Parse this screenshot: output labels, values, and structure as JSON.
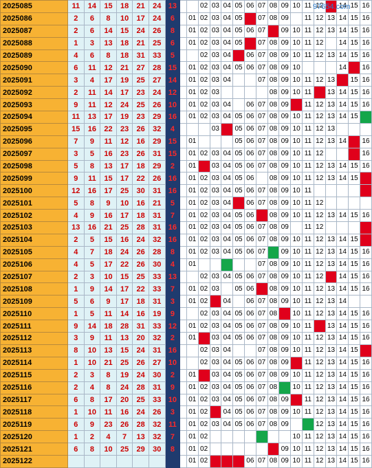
{
  "watermark": "97654.com",
  "columns": [
    "01",
    "02",
    "03",
    "04",
    "05",
    "06",
    "07",
    "08",
    "09",
    "10",
    "11",
    "12",
    "13",
    "14",
    "15",
    "16"
  ],
  "colors": {
    "period_bg": "#f7b233",
    "red_ball_bg": "#dff2f6",
    "red_ball_text": "#cc0000",
    "blue_ball_bg": "#1f3b6e",
    "blue_ball_text": "#ff2a2a",
    "hit_red": "#e0001b",
    "hit_green": "#14a64a"
  },
  "rows": [
    {
      "period": "2025085",
      "reds": [
        "11",
        "14",
        "15",
        "18",
        "21",
        "24"
      ],
      "blue": "13",
      "hit": 13,
      "hitColor": "red",
      "missing": [
        1
      ]
    },
    {
      "period": "2025086",
      "reds": [
        "2",
        "6",
        "8",
        "10",
        "17",
        "24"
      ],
      "blue": "6",
      "hit": 6,
      "hitColor": "red",
      "missing": [
        10
      ]
    },
    {
      "period": "2025087",
      "reds": [
        "2",
        "6",
        "14",
        "15",
        "24",
        "26"
      ],
      "blue": "8",
      "hit": 8,
      "hitColor": "red",
      "missing": []
    },
    {
      "period": "2025088",
      "reds": [
        "1",
        "3",
        "13",
        "18",
        "21",
        "25"
      ],
      "blue": "6",
      "hit": 6,
      "hitColor": "red",
      "missing": [
        13
      ]
    },
    {
      "period": "2025089",
      "reds": [
        "4",
        "6",
        "8",
        "18",
        "31",
        "33"
      ],
      "blue": "5",
      "hit": 5,
      "hitColor": "red",
      "missing": [
        1
      ]
    },
    {
      "period": "2025090",
      "reds": [
        "6",
        "11",
        "12",
        "21",
        "27",
        "28"
      ],
      "blue": "15",
      "hit": 15,
      "hitColor": "red",
      "missing": [
        11,
        12,
        13
      ]
    },
    {
      "period": "2025091",
      "reds": [
        "3",
        "4",
        "17",
        "19",
        "25",
        "27"
      ],
      "blue": "14",
      "hit": 14,
      "hitColor": "red",
      "missing": [
        5,
        6
      ]
    },
    {
      "period": "2025092",
      "reds": [
        "2",
        "11",
        "14",
        "17",
        "23",
        "24"
      ],
      "blue": "12",
      "hit": 12,
      "hitColor": "red",
      "missing": [
        4,
        5,
        6,
        7
      ]
    },
    {
      "period": "2025093",
      "reds": [
        "9",
        "11",
        "12",
        "24",
        "25",
        "26"
      ],
      "blue": "10",
      "hit": 10,
      "hitColor": "red",
      "missing": [
        5
      ]
    },
    {
      "period": "2025094",
      "reds": [
        "11",
        "13",
        "17",
        "19",
        "23",
        "29"
      ],
      "blue": "16",
      "hit": 16,
      "hitColor": "green",
      "missing": []
    },
    {
      "period": "2025095",
      "reds": [
        "15",
        "16",
        "22",
        "23",
        "26",
        "32"
      ],
      "blue": "4",
      "hit": 4,
      "hitColor": "red",
      "missing": [
        1,
        2,
        14,
        15,
        16
      ]
    },
    {
      "period": "2025096",
      "reds": [
        "7",
        "9",
        "11",
        "12",
        "16",
        "29"
      ],
      "blue": "15",
      "hit": 15,
      "hitColor": "red",
      "missing": [
        2,
        3,
        4
      ]
    },
    {
      "period": "2025097",
      "reds": [
        "3",
        "5",
        "16",
        "23",
        "26",
        "31"
      ],
      "blue": "15",
      "hit": 15,
      "hitColor": "red",
      "missing": [
        13,
        14
      ]
    },
    {
      "period": "2025098",
      "reds": [
        "5",
        "8",
        "13",
        "17",
        "18",
        "29"
      ],
      "blue": "2",
      "hit": 2,
      "hitColor": "red",
      "missing": []
    },
    {
      "period": "2025099",
      "reds": [
        "9",
        "11",
        "15",
        "17",
        "22",
        "26"
      ],
      "blue": "16",
      "hit": 16,
      "hitColor": "red",
      "missing": [
        7
      ]
    },
    {
      "period": "2025100",
      "reds": [
        "12",
        "16",
        "17",
        "25",
        "30",
        "31"
      ],
      "blue": "16",
      "hit": 16,
      "hitColor": "red",
      "missing": [
        12,
        13,
        14,
        15
      ]
    },
    {
      "period": "2025101",
      "reds": [
        "5",
        "8",
        "9",
        "10",
        "16",
        "21"
      ],
      "blue": "5",
      "hit": 5,
      "hitColor": "red",
      "missing": [
        13,
        14,
        15,
        16
      ]
    },
    {
      "period": "2025102",
      "reds": [
        "4",
        "9",
        "16",
        "17",
        "18",
        "31"
      ],
      "blue": "7",
      "hit": 7,
      "hitColor": "red",
      "missing": []
    },
    {
      "period": "2025103",
      "reds": [
        "13",
        "16",
        "21",
        "25",
        "28",
        "31"
      ],
      "blue": "16",
      "hit": 16,
      "hitColor": "red",
      "missing": [
        10,
        13,
        14,
        15
      ]
    },
    {
      "period": "2025104",
      "reds": [
        "2",
        "5",
        "15",
        "16",
        "24",
        "32"
      ],
      "blue": "16",
      "hit": 16,
      "hitColor": "red",
      "missing": []
    },
    {
      "period": "2025105",
      "reds": [
        "4",
        "7",
        "18",
        "24",
        "26",
        "28"
      ],
      "blue": "8",
      "hit": 8,
      "hitColor": "green",
      "missing": []
    },
    {
      "period": "2025106",
      "reds": [
        "4",
        "5",
        "17",
        "22",
        "26",
        "30"
      ],
      "blue": "4",
      "hit": 4,
      "hitColor": "green",
      "missing": [
        2,
        3,
        5,
        6
      ]
    },
    {
      "period": "2025107",
      "reds": [
        "2",
        "3",
        "10",
        "15",
        "25",
        "33"
      ],
      "blue": "13",
      "hit": 13,
      "hitColor": "red",
      "missing": [
        1
      ]
    },
    {
      "period": "2025108",
      "reds": [
        "1",
        "9",
        "14",
        "17",
        "22",
        "33"
      ],
      "blue": "7",
      "hit": 7,
      "hitColor": "red",
      "missing": [
        4
      ]
    },
    {
      "period": "2025109",
      "reds": [
        "5",
        "6",
        "9",
        "17",
        "18",
        "31"
      ],
      "blue": "3",
      "hit": 3,
      "hitColor": "red",
      "missing": [
        5,
        15,
        16
      ]
    },
    {
      "period": "2025110",
      "reds": [
        "1",
        "5",
        "11",
        "14",
        "16",
        "19"
      ],
      "blue": "9",
      "hit": 9,
      "hitColor": "red",
      "missing": [
        1
      ]
    },
    {
      "period": "2025111",
      "reds": [
        "9",
        "14",
        "18",
        "28",
        "31",
        "33"
      ],
      "blue": "12",
      "hit": 12,
      "hitColor": "red",
      "missing": []
    },
    {
      "period": "2025112",
      "reds": [
        "3",
        "9",
        "11",
        "13",
        "20",
        "32"
      ],
      "blue": "2",
      "hit": 2,
      "hitColor": "red",
      "missing": []
    },
    {
      "period": "2025113",
      "reds": [
        "8",
        "10",
        "13",
        "15",
        "24",
        "31"
      ],
      "blue": "16",
      "hit": 16,
      "hitColor": "red",
      "missing": [
        1,
        5,
        6
      ]
    },
    {
      "period": "2025114",
      "reds": [
        "1",
        "10",
        "21",
        "25",
        "26",
        "27"
      ],
      "blue": "10",
      "hit": 10,
      "hitColor": "red",
      "missing": [
        1
      ]
    },
    {
      "period": "2025115",
      "reds": [
        "2",
        "3",
        "8",
        "19",
        "24",
        "30"
      ],
      "blue": "2",
      "hit": 2,
      "hitColor": "red",
      "missing": []
    },
    {
      "period": "2025116",
      "reds": [
        "2",
        "4",
        "8",
        "24",
        "28",
        "31"
      ],
      "blue": "9",
      "hit": 9,
      "hitColor": "green",
      "missing": []
    },
    {
      "period": "2025117",
      "reds": [
        "6",
        "8",
        "17",
        "20",
        "25",
        "33"
      ],
      "blue": "10",
      "hit": 10,
      "hitColor": "red",
      "missing": []
    },
    {
      "period": "2025118",
      "reds": [
        "1",
        "10",
        "11",
        "16",
        "24",
        "26"
      ],
      "blue": "3",
      "hit": 3,
      "hitColor": "red",
      "missing": []
    },
    {
      "period": "2025119",
      "reds": [
        "6",
        "9",
        "23",
        "26",
        "28",
        "32"
      ],
      "blue": "11",
      "hit": 11,
      "hitColor": "green",
      "missing": [
        10
      ]
    },
    {
      "period": "2025120",
      "reds": [
        "1",
        "2",
        "4",
        "7",
        "13",
        "32"
      ],
      "blue": "7",
      "hit": 7,
      "hitColor": "green",
      "missing": [
        3,
        4,
        5,
        6,
        8,
        9
      ]
    },
    {
      "period": "2025121",
      "reds": [
        "6",
        "8",
        "10",
        "25",
        "29",
        "30"
      ],
      "blue": "8",
      "hit": 8,
      "hitColor": "red",
      "missing": [
        3,
        4,
        5,
        6,
        7
      ]
    },
    {
      "period": "2025122",
      "reds": [
        "",
        "",
        "",
        "",
        "",
        ""
      ],
      "blue": "",
      "hit": 0,
      "hitColor": "red",
      "missing": [],
      "predict": [
        3,
        4,
        5
      ]
    }
  ]
}
